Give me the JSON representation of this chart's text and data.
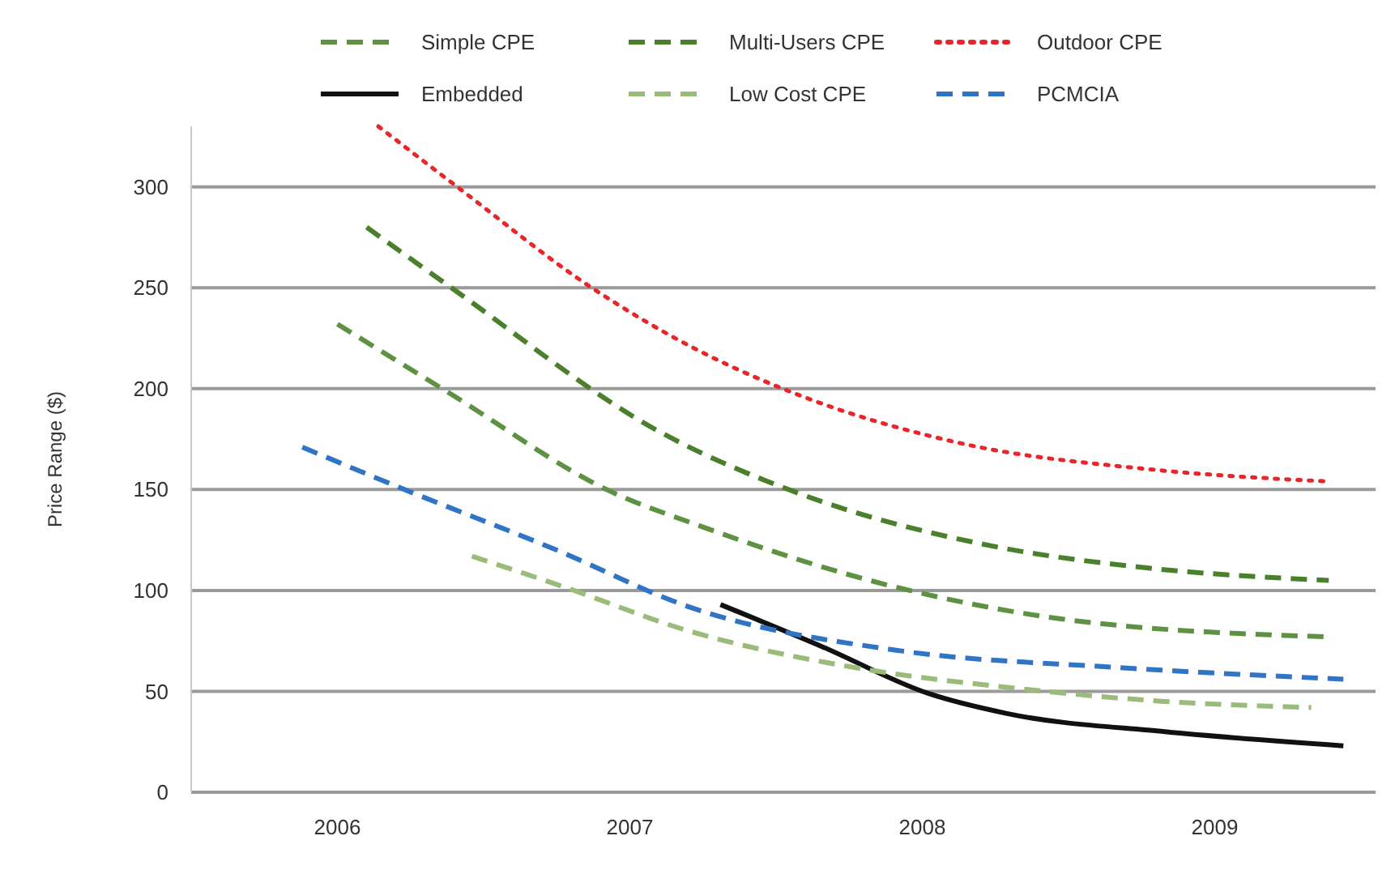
{
  "chart_data": {
    "type": "line",
    "ylabel": "Price Range ($)",
    "xlim": [
      2005.5,
      2009.55
    ],
    "xticks": [
      2006,
      2007,
      2008,
      2009
    ],
    "ylim": [
      0,
      330
    ],
    "yticks": [
      0,
      50,
      100,
      150,
      200,
      250,
      300
    ],
    "grid": "y",
    "legend": "top",
    "marker": "none",
    "series": [
      {
        "name": "Simple CPE",
        "color": "#5e9141",
        "line_style": "dashed",
        "x": [
          2006.0,
          2006.37,
          2006.95,
          2007.22,
          2007.9,
          2008.47,
          2009.39
        ],
        "values": [
          232,
          199,
          148,
          133,
          102,
          86,
          77
        ]
      },
      {
        "name": "Multi-Users CPE",
        "color": "#4a7f2c",
        "line_style": "dashed",
        "x": [
          2006.1,
          2006.39,
          2007.11,
          2007.58,
          2008.24,
          2008.78,
          2009.39
        ],
        "values": [
          280,
          250,
          178,
          148,
          122,
          111,
          105
        ]
      },
      {
        "name": "Outdoor CPE",
        "color": "#e8262a",
        "line_style": "dotted",
        "x": [
          2006.14,
          2006.41,
          2006.87,
          2007.22,
          2007.54,
          2008.13,
          2008.78,
          2009.39
        ],
        "values": [
          330,
          300,
          250,
          220,
          199,
          173,
          160,
          154
        ]
      },
      {
        "name": "Embedded",
        "color": "#111111",
        "line_style": "solid",
        "x": [
          2007.31,
          2007.66,
          2008.02,
          2008.29,
          2008.83,
          2009.44
        ],
        "values": [
          93,
          72,
          49,
          39,
          30,
          23
        ]
      },
      {
        "name": "Low Cost CPE",
        "color": "#9bbb7a",
        "line_style": "dashed",
        "x": [
          2006.46,
          2006.77,
          2007.2,
          2007.76,
          2008.29,
          2008.83,
          2009.33
        ],
        "values": [
          117,
          102,
          80,
          62,
          52,
          45,
          42
        ]
      },
      {
        "name": "PCMCIA",
        "color": "#2f74c7",
        "line_style": "dashed",
        "x": [
          2005.88,
          2006.23,
          2006.75,
          2007.2,
          2007.93,
          2008.65,
          2009.44
        ],
        "values": [
          171,
          150,
          120,
          92,
          70,
          62,
          56
        ]
      }
    ]
  }
}
